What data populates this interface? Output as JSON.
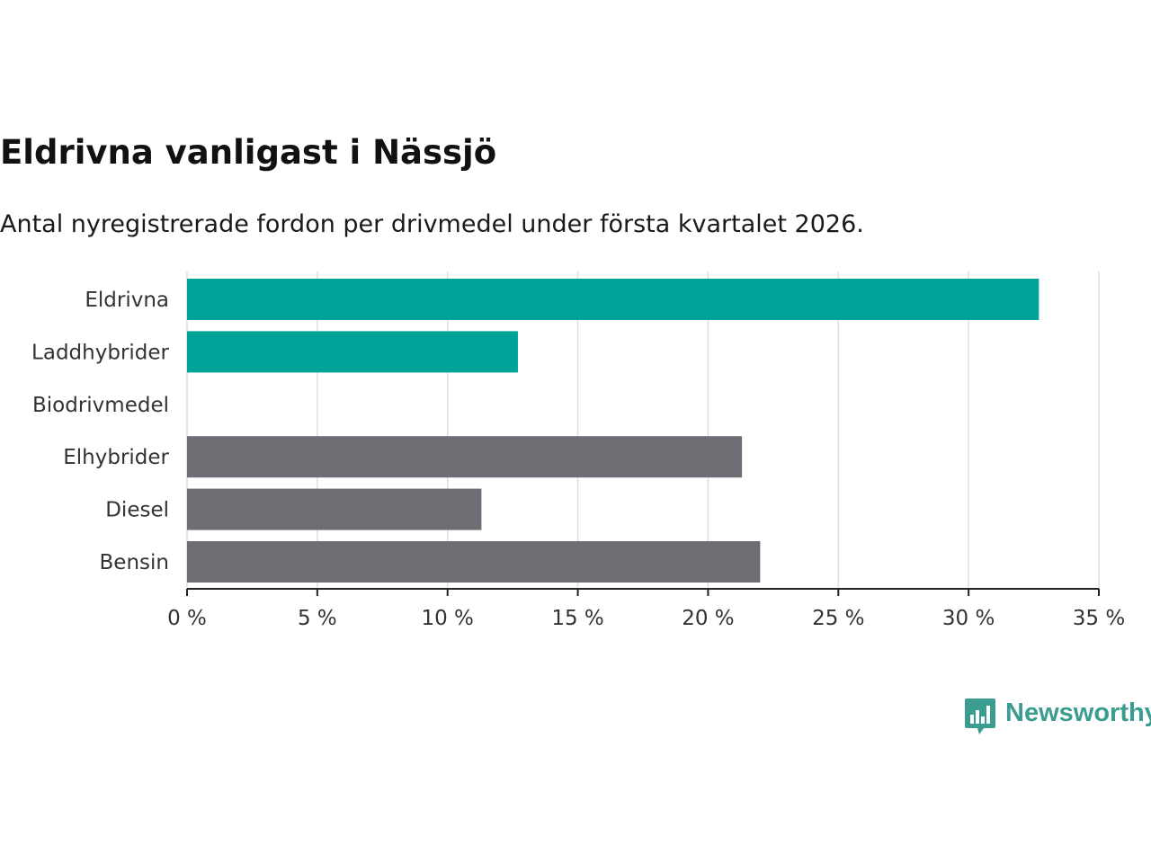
{
  "header": {
    "title": "Eldrivna vanligast i Nässjö",
    "subtitle": "Antal nyregistrerade fordon per drivmedel under första kvartalet 2026."
  },
  "chart_data": {
    "type": "bar",
    "orientation": "horizontal",
    "title": "Eldrivna vanligast i Nässjö",
    "subtitle": "Antal nyregistrerade fordon per drivmedel under första kvartalet 2026.",
    "categories": [
      "Eldrivna",
      "Laddhybrider",
      "Biodrivmedel",
      "Elhybrider",
      "Diesel",
      "Bensin"
    ],
    "values": [
      32.7,
      12.7,
      0,
      21.3,
      11.3,
      22.0
    ],
    "bar_colors": [
      "#00a398",
      "#00a398",
      "#00a398",
      "#6e6d74",
      "#6e6d74",
      "#6e6d74"
    ],
    "x_ticks": [
      0,
      5,
      10,
      15,
      20,
      25,
      30,
      35
    ],
    "x_tick_suffix": " %",
    "xlim": [
      0,
      35
    ],
    "xlabel": "",
    "ylabel": "",
    "grid": true
  },
  "brand": {
    "name": "Newsworthy",
    "color": "#3a9d8f"
  }
}
